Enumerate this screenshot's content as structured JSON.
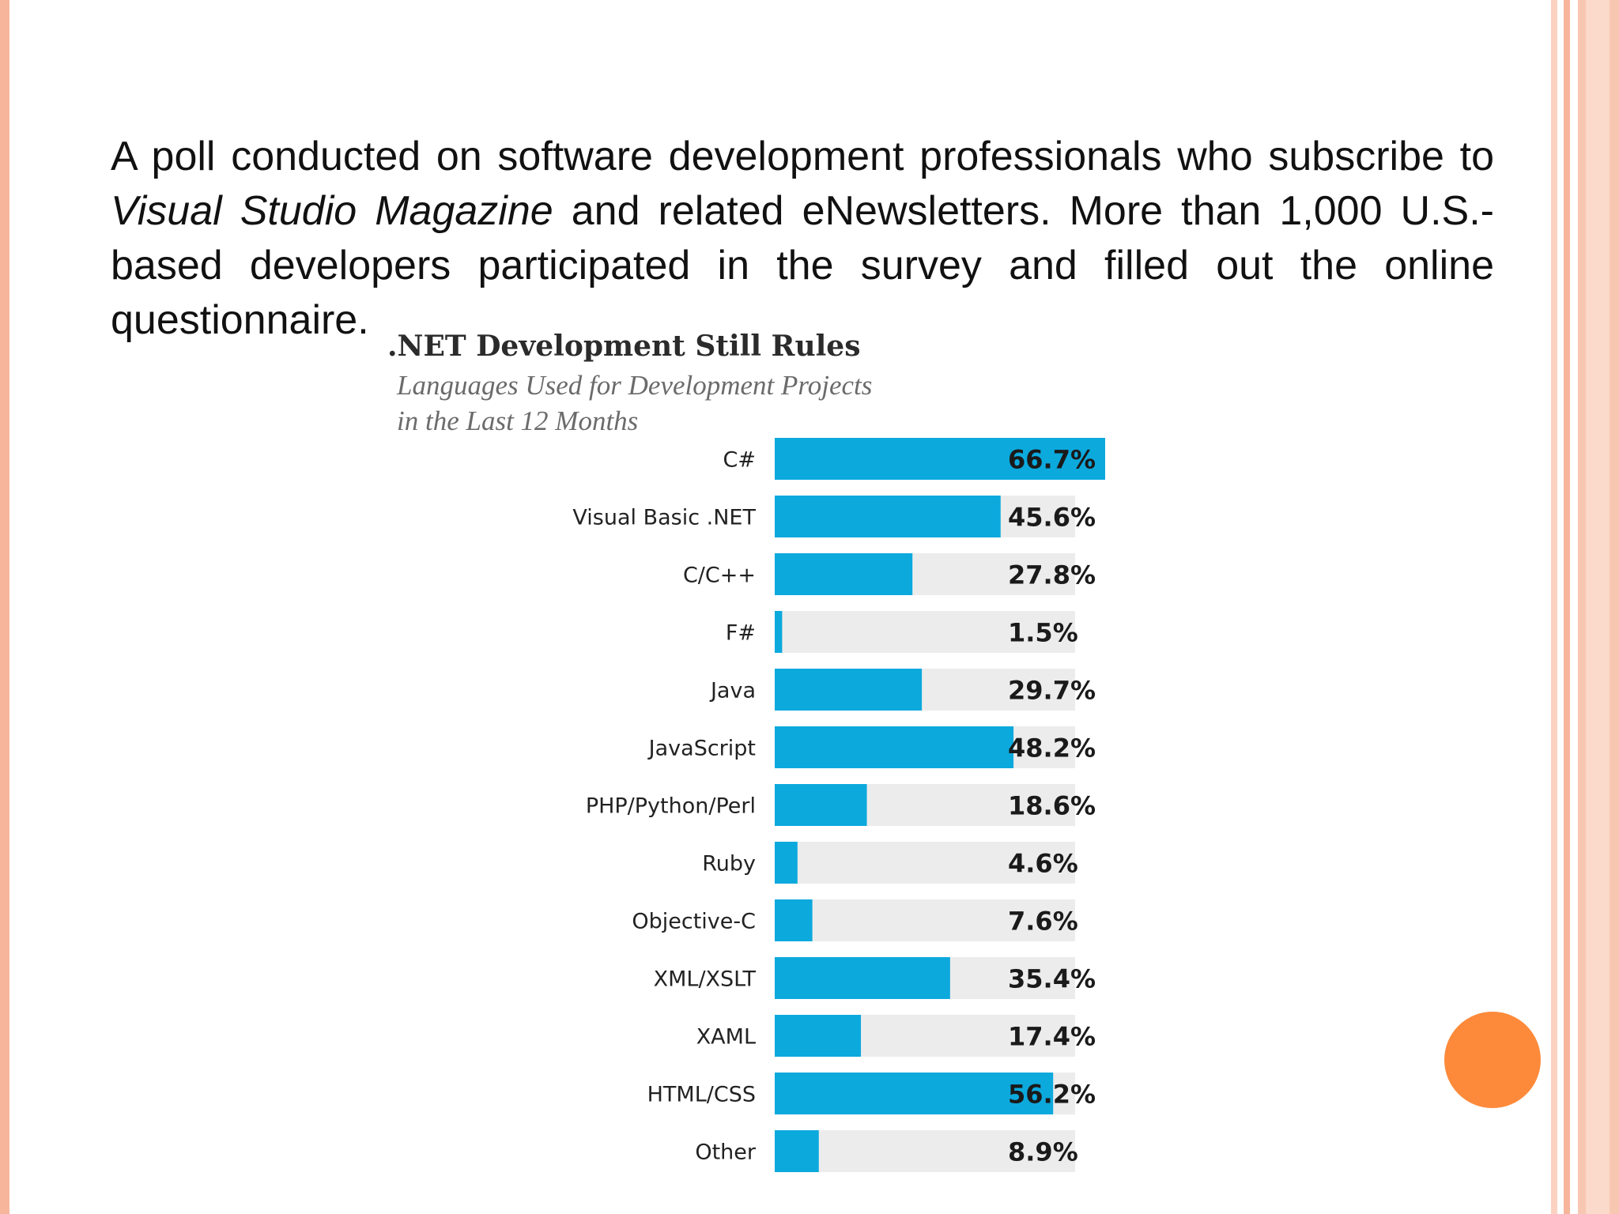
{
  "intro": {
    "part1": "A poll conducted on software development professionals who subscribe to ",
    "italic": "Visual Studio Magazine",
    "part2": " and related eNewsletters. More than 1,000 U.S.-based developers participated in the survey and filled out the online questionnaire."
  },
  "chart_data": {
    "type": "bar",
    "orientation": "horizontal",
    "title": ".NET Development Still Rules",
    "subtitle_lines": [
      "Languages Used for Development Projects",
      "in the Last 12 Months"
    ],
    "categories": [
      "C#",
      "Visual Basic .NET",
      "C/C++",
      "F#",
      "Java",
      "JavaScript",
      "PHP/Python/Perl",
      "Ruby",
      "Objective-C",
      "XML/XSLT",
      "XAML",
      "HTML/CSS",
      "Other"
    ],
    "values": [
      66.7,
      45.6,
      27.8,
      1.5,
      29.7,
      48.2,
      18.6,
      4.6,
      7.6,
      35.4,
      17.4,
      56.2,
      8.9
    ],
    "value_labels": [
      "66.7%",
      "45.6%",
      "27.8%",
      "1.5%",
      "29.7%",
      "48.2%",
      "18.6%",
      "4.6%",
      "7.6%",
      "35.4%",
      "17.4%",
      "56.2%",
      "8.9%"
    ],
    "xlim": [
      0,
      66.7
    ],
    "grid": false,
    "bar_color": "#0ca9dd",
    "track_color": "#ececec"
  },
  "colors": {
    "accent_dot": "#fd8a3a",
    "border": "#f7b59c"
  }
}
